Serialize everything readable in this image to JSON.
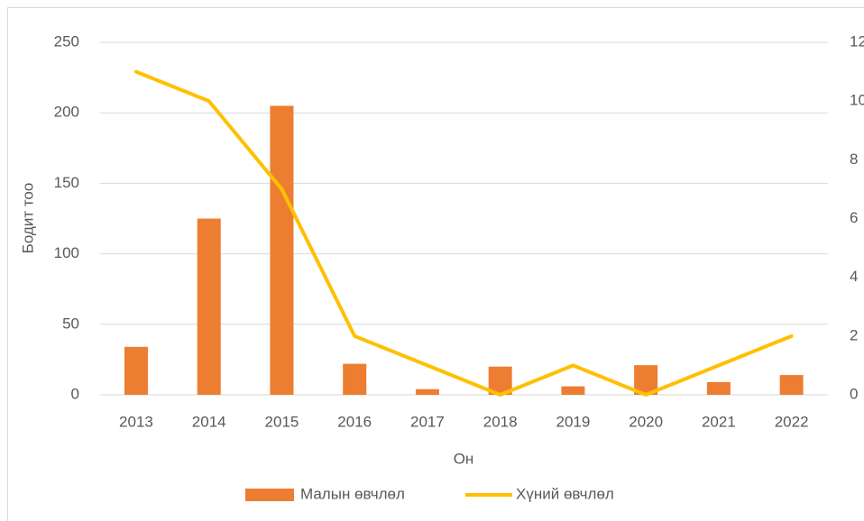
{
  "chart_data": {
    "type": "bar",
    "categories": [
      "2013",
      "2014",
      "2015",
      "2016",
      "2017",
      "2018",
      "2019",
      "2020",
      "2021",
      "2022"
    ],
    "series": [
      {
        "name": "Малын өвчлөл",
        "color": "#ed7d31",
        "type": "bar",
        "values": [
          34,
          125,
          205,
          22,
          4,
          20,
          6,
          21,
          9,
          14
        ]
      },
      {
        "name": "Хүний өвчлөл",
        "color": "#ffc000",
        "type": "line",
        "axis": "y2",
        "values": [
          11,
          10,
          7,
          2,
          1,
          0,
          1,
          0,
          1,
          2
        ]
      }
    ],
    "ylabel": "Бодит тоо",
    "xlabel": "Он",
    "ylim": [
      0,
      250
    ],
    "yticks": [
      0,
      50,
      100,
      150,
      200,
      250
    ],
    "y2lim": [
      0,
      12
    ],
    "y2ticks": [
      0,
      2,
      4,
      6,
      8,
      10,
      12
    ],
    "grid": true,
    "legend": "bottom"
  }
}
